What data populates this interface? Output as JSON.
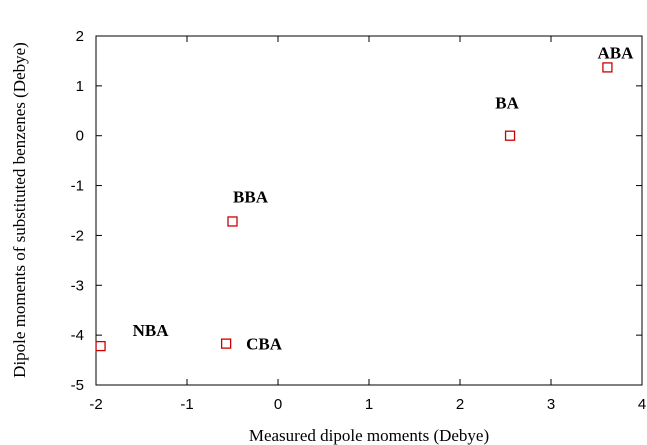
{
  "chart_data": {
    "type": "scatter",
    "title": "",
    "xlabel": "Measured dipole moments  (Debye)",
    "ylabel": "Dipole moments of substituted benzenes  (Debye)",
    "xlim": [
      -2,
      4
    ],
    "ylim": [
      -5,
      2
    ],
    "xticks": [
      -2,
      -1,
      0,
      1,
      2,
      3,
      4
    ],
    "yticks": [
      2,
      1,
      0,
      -1,
      -2,
      -3,
      -4,
      -5
    ],
    "grid": false,
    "legend": "none",
    "marker": "open-square",
    "marker_color": "#cc0000",
    "points": [
      {
        "label": "ABA",
        "x": 3.62,
        "y": 1.37
      },
      {
        "label": "BA",
        "x": 2.55,
        "y": 0.0
      },
      {
        "label": "BBA",
        "x": -0.5,
        "y": -1.72
      },
      {
        "label": "NBA",
        "x": -1.95,
        "y": -4.22
      },
      {
        "label": "CBA",
        "x": -0.57,
        "y": -4.17
      }
    ]
  }
}
